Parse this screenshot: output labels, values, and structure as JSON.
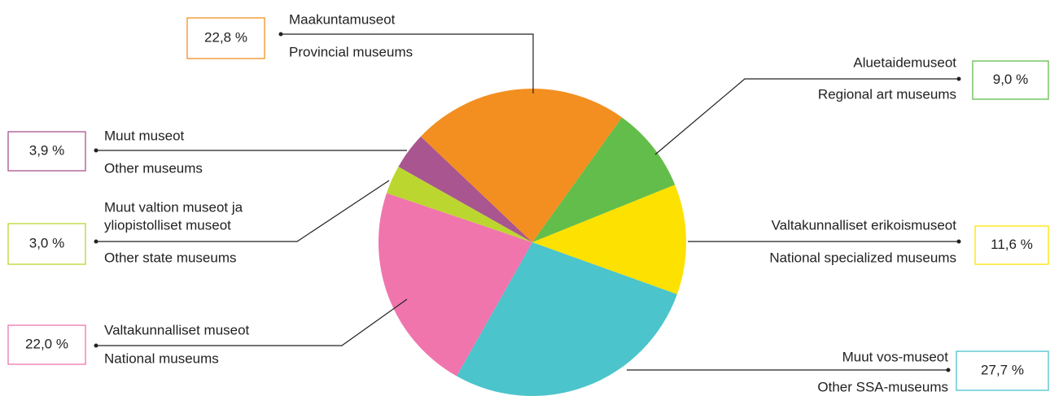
{
  "chart_data": {
    "type": "pie",
    "categories": [
      {
        "fi": [
          "Aluetaidemuseot"
        ],
        "en": "Regional art museums"
      },
      {
        "fi": [
          "Valtakunnalliset erikoismuseot"
        ],
        "en": "National specialized museums"
      },
      {
        "fi": [
          "Muut vos-museot"
        ],
        "en": "Other SSA-museums"
      },
      {
        "fi": [
          "Valtakunnalliset museot"
        ],
        "en": "National museums"
      },
      {
        "fi": [
          "Muut valtion museot ja",
          "yliopistolliset museot"
        ],
        "en": "Other state museums"
      },
      {
        "fi": [
          "Muut museot"
        ],
        "en": "Other museums"
      },
      {
        "fi": [
          "Maakuntamuseot"
        ],
        "en": "Provincial museums"
      }
    ],
    "values": [
      9.0,
      11.6,
      27.7,
      22.0,
      3.0,
      3.9,
      22.8
    ],
    "value_labels": [
      "9,0 %",
      "11,6 %",
      "27,7 %",
      "22,0 %",
      "3,0 %",
      "3,9 %",
      "22,8 %"
    ],
    "colors": [
      "#63bd4a",
      "#fde100",
      "#4bc4cb",
      "#f075ad",
      "#bcd630",
      "#a9558f",
      "#f38f20"
    ]
  }
}
